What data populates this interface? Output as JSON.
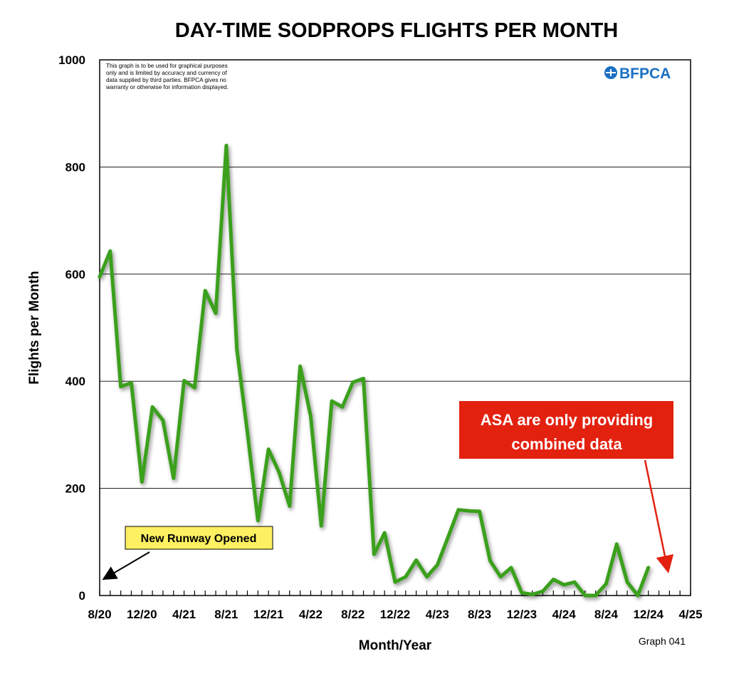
{
  "chart_data": {
    "type": "line",
    "title": "DAY-TIME SODPROPS FLIGHTS PER MONTH",
    "xlabel": "Month/Year",
    "ylabel": "Flights per Month",
    "ylim": [
      0,
      1000
    ],
    "yticks": [
      0,
      200,
      400,
      600,
      800,
      1000
    ],
    "xlim": [
      "2020-08",
      "2025-04"
    ],
    "xticks": [
      {
        "label": "8/20",
        "month": "2020-08"
      },
      {
        "label": "12/20",
        "month": "2020-12"
      },
      {
        "label": "4/21",
        "month": "2021-04"
      },
      {
        "label": "8/21",
        "month": "2021-08"
      },
      {
        "label": "12/21",
        "month": "2021-12"
      },
      {
        "label": "4/22",
        "month": "2022-04"
      },
      {
        "label": "8/22",
        "month": "2022-08"
      },
      {
        "label": "12/22",
        "month": "2022-12"
      },
      {
        "label": "4/23",
        "month": "2023-04"
      },
      {
        "label": "8/23",
        "month": "2023-08"
      },
      {
        "label": "12/23",
        "month": "2023-12"
      },
      {
        "label": "4/24",
        "month": "2024-04"
      },
      {
        "label": "8/24",
        "month": "2024-08"
      },
      {
        "label": "12/24",
        "month": "2024-12"
      },
      {
        "label": "4/25",
        "month": "2025-04"
      }
    ],
    "grid": true,
    "series": [
      {
        "name": "",
        "color": "#3aa01c",
        "x": [
          "2020-08",
          "2020-09",
          "2020-10",
          "2020-11",
          "2020-12",
          "2021-01",
          "2021-02",
          "2021-03",
          "2021-04",
          "2021-05",
          "2021-06",
          "2021-07",
          "2021-08",
          "2021-09",
          "2021-10",
          "2021-11",
          "2021-12",
          "2022-01",
          "2022-02",
          "2022-03",
          "2022-04",
          "2022-05",
          "2022-06",
          "2022-07",
          "2022-08",
          "2022-09",
          "2022-10",
          "2022-11",
          "2022-12",
          "2023-01",
          "2023-02",
          "2023-03",
          "2023-04",
          "2023-05",
          "2023-06",
          "2023-07",
          "2023-08",
          "2023-09",
          "2023-10",
          "2023-11",
          "2023-12",
          "2024-01",
          "2024-02",
          "2024-03",
          "2024-04",
          "2024-05",
          "2024-06",
          "2024-07",
          "2024-08",
          "2024-09",
          "2024-10",
          "2024-11",
          "2024-12"
        ],
        "values": [
          595,
          643,
          390,
          397,
          212,
          352,
          327,
          219,
          401,
          388,
          569,
          527,
          840,
          460,
          305,
          140,
          273,
          230,
          167,
          428,
          335,
          130,
          363,
          352,
          398,
          405,
          77,
          117,
          25,
          35,
          66,
          35,
          57,
          108,
          160,
          158,
          157,
          65,
          35,
          52,
          5,
          2,
          8,
          30,
          20,
          25,
          0,
          0,
          22,
          96,
          25,
          0,
          52
        ]
      }
    ]
  },
  "disclaimer": [
    "This graph is to be used for graphical purposes",
    "only and is limited by accuracy and currency of",
    "data supplied by third parties. BFPCA gives no",
    "warranty or otherwise for information displayed."
  ],
  "logo_text": "BFPCA",
  "graph_number": "Graph 041",
  "callouts": {
    "runway": "New Runway Opened",
    "asa_line1": "ASA are only providing",
    "asa_line2": "combined data"
  },
  "colors": {
    "line": "#3aa01c",
    "callout_red": "#e3210f",
    "callout_yellow": "#fdf061",
    "logo": "#1a6fc4",
    "arrow_red": "#e3210f"
  }
}
